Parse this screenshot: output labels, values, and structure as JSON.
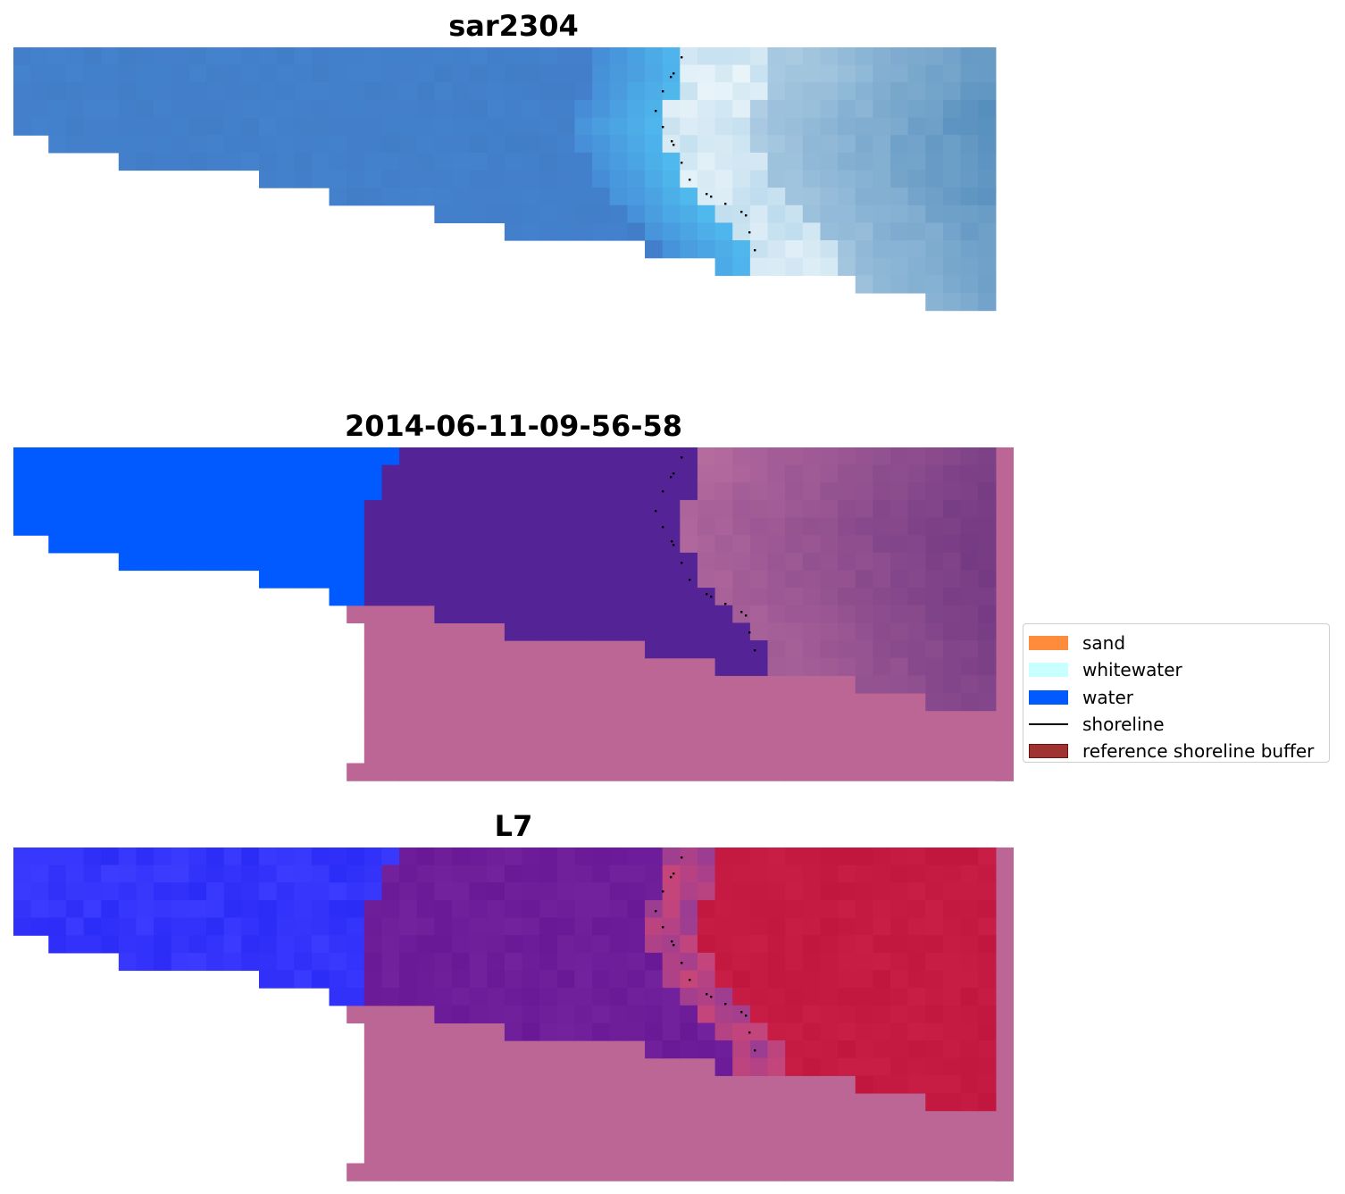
{
  "titles": {
    "panel1": "sar2304",
    "panel2": "2014-06-11-09-56-58",
    "panel3": "L7"
  },
  "legend": {
    "items": [
      {
        "label": "sand",
        "color": "#ff8c3c",
        "kind": "patch"
      },
      {
        "label": "whitewater",
        "color": "#c8ffff",
        "kind": "patch"
      },
      {
        "label": "water",
        "color": "#005aff",
        "kind": "patch"
      },
      {
        "label": "shoreline",
        "color": "#000000",
        "kind": "line"
      },
      {
        "label": "reference shoreline buffer",
        "color": "#a03232",
        "kind": "patch"
      }
    ]
  },
  "colors": {
    "background": "#ffffff",
    "classified_water": "#005aff",
    "classified_other": "#542497",
    "buffer_overlay": "#bb6695",
    "shoreline_points": "#000000"
  }
}
